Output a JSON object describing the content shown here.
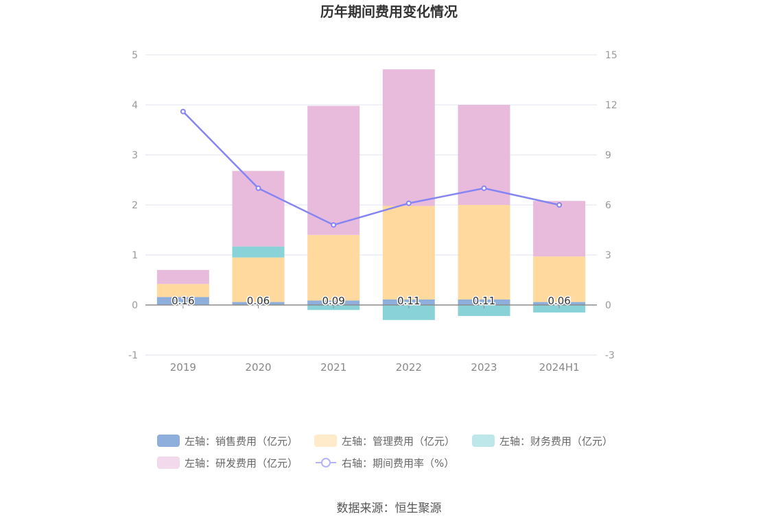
{
  "chart_data": {
    "type": "bar",
    "title": "历年期间费用变化情况",
    "categories": [
      "2019",
      "2020",
      "2021",
      "2022",
      "2023",
      "2024H1"
    ],
    "left_axis": {
      "ylim": [
        -1,
        5
      ],
      "ticks": [
        5,
        4,
        3,
        2,
        1,
        0,
        -1
      ]
    },
    "right_axis": {
      "ylim": [
        -3,
        15
      ],
      "ticks": [
        15,
        12,
        9,
        6,
        3,
        0,
        -3
      ]
    },
    "series": [
      {
        "key": "sales",
        "name": "左轴：销售费用（亿元）",
        "axis": "left",
        "type": "bar",
        "color": "#8eaedb",
        "values": [
          0.16,
          0.06,
          0.09,
          0.11,
          0.11,
          0.06
        ],
        "labels": [
          "0.16",
          "0.06",
          "0.09",
          "0.11",
          "0.11",
          "0.06"
        ]
      },
      {
        "key": "admin",
        "name": "左轴：管理费用（亿元）",
        "axis": "left",
        "type": "bar",
        "color": "#ffd99e",
        "values": [
          0.26,
          0.89,
          1.31,
          1.87,
          1.89,
          0.91
        ]
      },
      {
        "key": "finance",
        "name": "左轴：财务费用（亿元）",
        "axis": "left",
        "type": "bar",
        "color": "#89d3d8",
        "values": [
          0.0,
          0.22,
          -0.1,
          -0.3,
          -0.22,
          -0.15
        ]
      },
      {
        "key": "rd",
        "name": "左轴：研发费用（亿元）",
        "axis": "left",
        "type": "bar",
        "color": "#e8bbdc",
        "values": [
          0.28,
          1.51,
          2.58,
          2.73,
          2.0,
          1.11
        ]
      },
      {
        "key": "rate",
        "name": "右轴：期间费用率（%）",
        "axis": "right",
        "type": "line",
        "color": "#8484f2",
        "values": [
          11.6,
          7.0,
          4.8,
          6.1,
          7.0,
          6.0
        ]
      }
    ]
  },
  "source": "数据来源：恒生聚源"
}
